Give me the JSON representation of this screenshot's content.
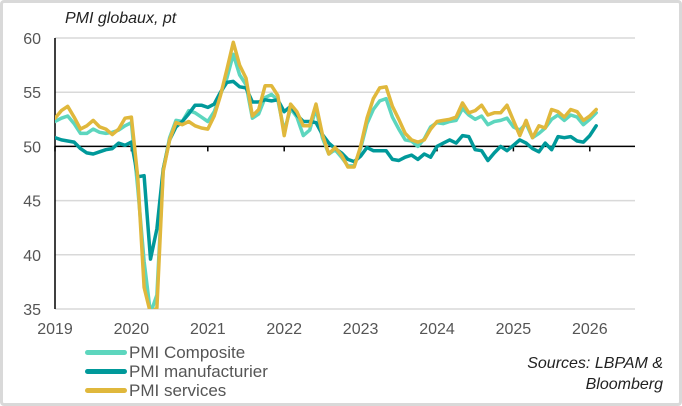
{
  "chart_data": {
    "type": "line",
    "title": "PMI globaux, pt",
    "xlabel": "",
    "ylabel": "",
    "x_ticks": [
      "2019",
      "2020",
      "2021",
      "2022",
      "2023",
      "2024",
      "2025",
      "2026"
    ],
    "y_ticks": [
      35,
      40,
      45,
      50,
      55,
      60
    ],
    "ylim": [
      35,
      60
    ],
    "xlim": [
      "2019-01",
      "2026-12"
    ],
    "x_start": "2019-01",
    "frequency": "monthly",
    "grid": true,
    "legend_position": "bottom-left",
    "series": [
      {
        "name": "PMI Composite",
        "color": "#5dd6be",
        "values": [
          52.3,
          52.6,
          52.8,
          52.1,
          51.2,
          51.2,
          51.6,
          51.3,
          51.2,
          51.3,
          51.5,
          51.9,
          52.2,
          46.1,
          39.4,
          26.2,
          36.3,
          47.8,
          50.8,
          52.4,
          52.3,
          53.3,
          53.1,
          52.7,
          52.3,
          53.2,
          54.8,
          56.3,
          58.5,
          56.6,
          55.7,
          52.6,
          53.0,
          54.5,
          54.8,
          54.3,
          51.4,
          53.5,
          52.7,
          51.0,
          51.5,
          53.5,
          50.8,
          49.3,
          49.7,
          49.0,
          48.2,
          48.2,
          49.8,
          52.1,
          53.4,
          54.2,
          54.4,
          52.7,
          51.6,
          50.6,
          50.5,
          50.0,
          50.7,
          51.8,
          52.2,
          52.1,
          52.3,
          52.4,
          53.5,
          52.9,
          52.5,
          52.8,
          52.0,
          52.3,
          52.4,
          52.6,
          51.8,
          51.5,
          52.1,
          50.8,
          51.2,
          51.7,
          52.5,
          52.9,
          52.4,
          52.9,
          52.7,
          52.0,
          52.5,
          53.1
        ]
      },
      {
        "name": "PMI manufacturier",
        "color": "#00999a",
        "values": [
          50.8,
          50.6,
          50.5,
          50.4,
          49.8,
          49.4,
          49.3,
          49.5,
          49.7,
          49.8,
          50.3,
          50.1,
          50.4,
          47.2,
          47.3,
          39.6,
          42.4,
          47.9,
          50.6,
          51.8,
          52.3,
          53.0,
          53.8,
          53.8,
          53.6,
          53.9,
          55.0,
          55.9,
          56.0,
          55.5,
          55.4,
          54.1,
          54.1,
          54.3,
          54.2,
          54.3,
          53.2,
          53.7,
          52.9,
          52.3,
          52.3,
          52.2,
          51.1,
          50.3,
          49.8,
          49.4,
          48.8,
          48.6,
          49.1,
          49.9,
          49.6,
          49.6,
          49.6,
          48.8,
          48.7,
          49.0,
          49.2,
          48.8,
          49.3,
          49.0,
          50.0,
          50.3,
          50.6,
          50.3,
          51.0,
          50.9,
          49.7,
          49.6,
          48.7,
          49.4,
          50.0,
          49.6,
          50.1,
          50.6,
          50.3,
          49.8,
          49.5,
          50.3,
          49.7,
          50.9,
          50.8,
          50.9,
          50.5,
          50.4,
          51.0,
          51.9
        ]
      },
      {
        "name": "PMI services",
        "color": "#e0b83c",
        "values": [
          52.6,
          53.3,
          53.7,
          52.7,
          51.6,
          51.9,
          52.4,
          51.8,
          51.6,
          51.1,
          51.6,
          52.6,
          52.7,
          47.1,
          37.0,
          23.7,
          35.1,
          47.7,
          50.6,
          52.2,
          52.0,
          52.3,
          51.9,
          51.7,
          51.6,
          52.8,
          54.7,
          57.1,
          59.6,
          57.5,
          56.3,
          52.8,
          53.4,
          55.6,
          55.6,
          54.7,
          51.0,
          53.9,
          53.2,
          51.9,
          51.9,
          53.9,
          51.1,
          49.3,
          49.9,
          49.2,
          48.1,
          48.1,
          50.0,
          52.6,
          54.4,
          55.4,
          55.5,
          53.7,
          52.5,
          51.2,
          50.6,
          50.4,
          50.6,
          51.6,
          52.3,
          52.4,
          52.5,
          52.7,
          54.0,
          53.1,
          53.3,
          53.8,
          52.9,
          53.1,
          53.1,
          53.8,
          52.4,
          51.0,
          52.4,
          50.8,
          51.9,
          51.7,
          53.4,
          53.2,
          52.7,
          53.4,
          53.2,
          52.4,
          52.8,
          53.4
        ]
      }
    ]
  },
  "sources": {
    "line1": "Sources: LBPAM &",
    "line2": "Bloomberg"
  }
}
